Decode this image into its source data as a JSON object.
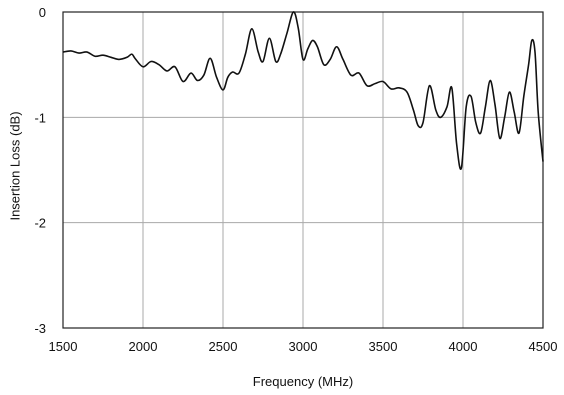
{
  "chart_data": {
    "type": "line",
    "title": "",
    "xlabel": "Frequency (MHz)",
    "ylabel": "Insertion Loss (dB)",
    "xlim": [
      1500,
      4500
    ],
    "ylim": [
      -3,
      0
    ],
    "x_ticks": [
      1500,
      2000,
      2500,
      3000,
      3500,
      4000,
      4500
    ],
    "y_ticks": [
      0,
      -1,
      -2,
      -3
    ],
    "x_tick_labels": [
      "1500",
      "2000",
      "2500",
      "3000",
      "3500",
      "4000",
      "4500"
    ],
    "y_tick_labels": [
      "0",
      "-1",
      "-2",
      "-3"
    ],
    "grid": true,
    "legend": "none",
    "series": [
      {
        "color": "#111111",
        "x": [
          1500,
          1550,
          1600,
          1650,
          1700,
          1750,
          1800,
          1850,
          1900,
          1930,
          1950,
          2000,
          2050,
          2100,
          2150,
          2200,
          2250,
          2300,
          2340,
          2380,
          2420,
          2460,
          2500,
          2530,
          2560,
          2600,
          2640,
          2680,
          2720,
          2750,
          2790,
          2830,
          2860,
          2900,
          2940,
          2970,
          3000,
          3030,
          3060,
          3090,
          3130,
          3170,
          3210,
          3250,
          3300,
          3350,
          3400,
          3450,
          3500,
          3550,
          3600,
          3650,
          3690,
          3720,
          3750,
          3790,
          3830,
          3860,
          3900,
          3930,
          3960,
          3990,
          4020,
          4050,
          4080,
          4110,
          4140,
          4170,
          4200,
          4230,
          4260,
          4290,
          4320,
          4350,
          4380,
          4410,
          4430,
          4450,
          4470,
          4500
        ],
        "y": [
          -0.38,
          -0.37,
          -0.39,
          -0.38,
          -0.42,
          -0.41,
          -0.43,
          -0.45,
          -0.43,
          -0.4,
          -0.44,
          -0.52,
          -0.47,
          -0.5,
          -0.56,
          -0.52,
          -0.66,
          -0.58,
          -0.65,
          -0.6,
          -0.44,
          -0.62,
          -0.74,
          -0.62,
          -0.57,
          -0.58,
          -0.4,
          -0.16,
          -0.38,
          -0.47,
          -0.25,
          -0.47,
          -0.4,
          -0.2,
          0.0,
          -0.15,
          -0.45,
          -0.35,
          -0.27,
          -0.33,
          -0.5,
          -0.45,
          -0.33,
          -0.45,
          -0.6,
          -0.58,
          -0.7,
          -0.68,
          -0.66,
          -0.73,
          -0.72,
          -0.76,
          -0.93,
          -1.08,
          -1.05,
          -0.7,
          -0.93,
          -1.0,
          -0.9,
          -0.72,
          -1.25,
          -1.48,
          -0.9,
          -0.8,
          -1.05,
          -1.15,
          -0.9,
          -0.65,
          -0.88,
          -1.2,
          -1.0,
          -0.76,
          -0.95,
          -1.15,
          -0.8,
          -0.5,
          -0.27,
          -0.38,
          -0.95,
          -1.42
        ]
      }
    ]
  }
}
